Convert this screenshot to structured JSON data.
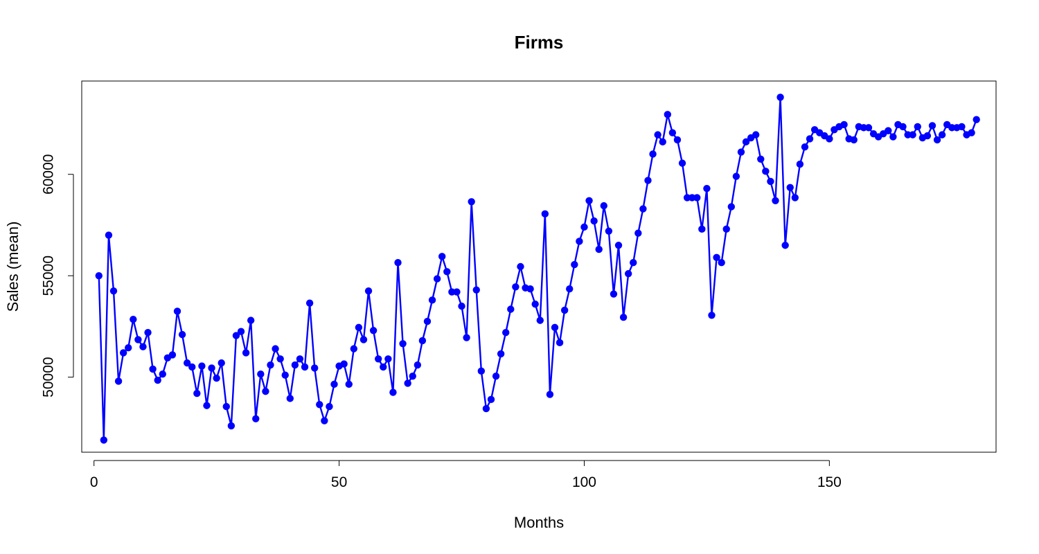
{
  "chart_data": {
    "type": "line",
    "title": "Firms",
    "xlabel": "Months",
    "ylabel": "Sales (mean)",
    "xlim": [
      -2.5,
      184
    ],
    "ylim": [
      46300,
      64600
    ],
    "x_ticks": [
      0,
      50,
      100,
      150
    ],
    "x_tick_labels": [
      "0",
      "50",
      "100",
      "150"
    ],
    "y_ticks": [
      50000,
      55000,
      60000
    ],
    "y_tick_labels": [
      "50000",
      "55000",
      "60000"
    ],
    "grid": false,
    "legend": "none",
    "series": [
      {
        "color": "#0000ff",
        "marker": "filled-circle",
        "x": [
          1,
          2,
          3,
          4,
          5,
          6,
          7,
          8,
          9,
          10,
          11,
          12,
          13,
          14,
          15,
          16,
          17,
          18,
          19,
          20,
          21,
          22,
          23,
          24,
          25,
          26,
          27,
          28,
          29,
          30,
          31,
          32,
          33,
          34,
          35,
          36,
          37,
          38,
          39,
          40,
          41,
          42,
          43,
          44,
          45,
          46,
          47,
          48,
          49,
          50,
          51,
          52,
          53,
          54,
          55,
          56,
          57,
          58,
          59,
          60,
          61,
          62,
          63,
          64,
          65,
          66,
          67,
          68,
          69,
          70,
          71,
          72,
          73,
          74,
          75,
          76,
          77,
          78,
          79,
          80,
          81,
          82,
          83,
          84,
          85,
          86,
          87,
          88,
          89,
          90,
          91,
          92,
          93,
          94,
          95,
          96,
          97,
          98,
          99,
          100,
          101,
          102,
          103,
          104,
          105,
          106,
          107,
          108,
          109,
          110,
          111,
          112,
          113,
          114,
          115,
          116,
          117,
          118,
          119,
          120,
          121,
          122,
          123,
          124,
          125,
          126,
          127,
          128,
          129,
          130,
          131,
          132,
          133,
          134,
          135,
          136,
          137,
          138,
          139,
          140,
          141,
          142,
          143,
          144,
          145,
          146,
          147,
          148,
          149,
          150,
          151,
          152,
          153,
          154,
          155,
          156,
          157,
          158,
          159,
          160,
          161,
          162,
          163,
          164,
          165,
          166,
          167,
          168,
          169,
          170,
          171,
          172,
          173,
          174,
          175,
          176,
          177,
          178,
          179,
          180
        ],
        "y": [
          55000,
          46900,
          57000,
          54250,
          49800,
          51200,
          51450,
          52850,
          51850,
          51500,
          52200,
          50400,
          49850,
          50150,
          50950,
          51100,
          53250,
          52100,
          50700,
          50500,
          49200,
          50550,
          48600,
          50450,
          49950,
          50700,
          48550,
          47600,
          52050,
          52250,
          51200,
          52800,
          47950,
          50150,
          49300,
          50600,
          51400,
          50900,
          50100,
          48950,
          50600,
          50900,
          50500,
          53650,
          50450,
          48650,
          47850,
          48550,
          49650,
          50550,
          50650,
          49650,
          51400,
          52450,
          51850,
          54250,
          52300,
          50900,
          50500,
          50900,
          49250,
          55650,
          51650,
          49700,
          50050,
          50600,
          51800,
          52750,
          53800,
          54850,
          55950,
          55200,
          54200,
          54200,
          53500,
          51950,
          58650,
          54300,
          50300,
          48450,
          48900,
          50050,
          51150,
          52200,
          53350,
          54450,
          55450,
          54400,
          54350,
          53600,
          52800,
          58050,
          49150,
          52450,
          51700,
          53300,
          54350,
          55550,
          56700,
          57400,
          58700,
          57700,
          56300,
          58450,
          57200,
          54100,
          56500,
          52950,
          55100,
          55650,
          57100,
          58300,
          59700,
          61000,
          61950,
          61600,
          62950,
          62050,
          61700,
          60550,
          58850,
          58850,
          58850,
          57300,
          59300,
          53050,
          55900,
          55650,
          57300,
          58400,
          59900,
          61100,
          61600,
          61800,
          61950,
          60750,
          60150,
          59650,
          58700,
          63800,
          56500,
          59350,
          58850,
          60500,
          61350,
          61750,
          62200,
          62050,
          61900,
          61750,
          62200,
          62350,
          62450,
          61750,
          61700,
          62350,
          62300,
          62300,
          62000,
          61850,
          62000,
          62150,
          61850,
          62450,
          62350,
          61950,
          61950,
          62350,
          61800,
          61900,
          62400,
          61700,
          61950,
          62450,
          62300,
          62300,
          62350,
          61950,
          62050,
          62700
        ]
      }
    ]
  }
}
